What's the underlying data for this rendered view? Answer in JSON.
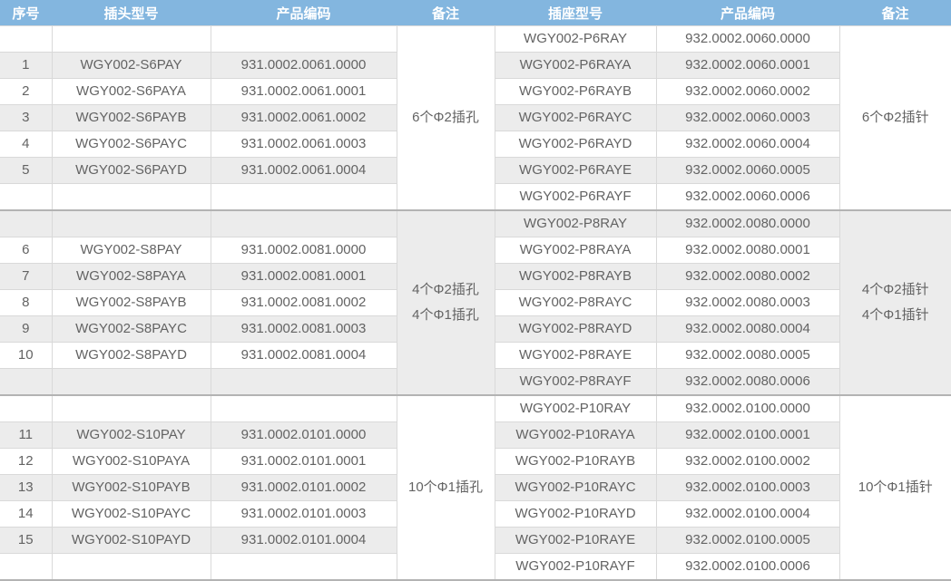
{
  "colors": {
    "header_bg": "#83B6DF",
    "header_text": "#FFFFFF",
    "stripe": "#ECECEC",
    "row_white": "#FFFFFF",
    "border": "#D9D9D9",
    "group_separator": "#B3B3B3",
    "cell_text": "#636363"
  },
  "table": {
    "headers": [
      "序号",
      "插头型号",
      "产品编码",
      "备注",
      "插座型号",
      "产品编码",
      "备注"
    ],
    "groups": [
      {
        "left_remark": "6个Φ2插孔",
        "right_remark": "6个Φ2插针",
        "left_rows": [
          [
            "",
            "",
            ""
          ],
          [
            "1",
            "WGY002-S6PAY",
            "931.0002.0061.0000"
          ],
          [
            "2",
            "WGY002-S6PAYA",
            "931.0002.0061.0001"
          ],
          [
            "3",
            "WGY002-S6PAYB",
            "931.0002.0061.0002"
          ],
          [
            "4",
            "WGY002-S6PAYC",
            "931.0002.0061.0003"
          ],
          [
            "5",
            "WGY002-S6PAYD",
            "931.0002.0061.0004"
          ],
          [
            "",
            "",
            ""
          ]
        ],
        "right_rows": [
          [
            "WGY002-P6RAY",
            "932.0002.0060.0000"
          ],
          [
            "WGY002-P6RAYA",
            "932.0002.0060.0001"
          ],
          [
            "WGY002-P6RAYB",
            "932.0002.0060.0002"
          ],
          [
            "WGY002-P6RAYC",
            "932.0002.0060.0003"
          ],
          [
            "WGY002-P6RAYD",
            "932.0002.0060.0004"
          ],
          [
            "WGY002-P6RAYE",
            "932.0002.0060.0005"
          ],
          [
            "WGY002-P6RAYF",
            "932.0002.0060.0006"
          ]
        ]
      },
      {
        "left_remark": "4个Φ2插孔\n4个Φ1插孔",
        "right_remark": "4个Φ2插针\n4个Φ1插针",
        "left_rows": [
          [
            "",
            "",
            ""
          ],
          [
            "6",
            "WGY002-S8PAY",
            "931.0002.0081.0000"
          ],
          [
            "7",
            "WGY002-S8PAYA",
            "931.0002.0081.0001"
          ],
          [
            "8",
            "WGY002-S8PAYB",
            "931.0002.0081.0002"
          ],
          [
            "9",
            "WGY002-S8PAYC",
            "931.0002.0081.0003"
          ],
          [
            "10",
            "WGY002-S8PAYD",
            "931.0002.0081.0004"
          ],
          [
            "",
            "",
            ""
          ]
        ],
        "right_rows": [
          [
            "WGY002-P8RAY",
            "932.0002.0080.0000"
          ],
          [
            "WGY002-P8RAYA",
            "932.0002.0080.0001"
          ],
          [
            "WGY002-P8RAYB",
            "932.0002.0080.0002"
          ],
          [
            "WGY002-P8RAYC",
            "932.0002.0080.0003"
          ],
          [
            "WGY002-P8RAYD",
            "932.0002.0080.0004"
          ],
          [
            "WGY002-P8RAYE",
            "932.0002.0080.0005"
          ],
          [
            "WGY002-P8RAYF",
            "932.0002.0080.0006"
          ]
        ]
      },
      {
        "left_remark": "10个Φ1插孔",
        "right_remark": "10个Φ1插针",
        "left_rows": [
          [
            "",
            "",
            ""
          ],
          [
            "11",
            "WGY002-S10PAY",
            "931.0002.0101.0000"
          ],
          [
            "12",
            "WGY002-S10PAYA",
            "931.0002.0101.0001"
          ],
          [
            "13",
            "WGY002-S10PAYB",
            "931.0002.0101.0002"
          ],
          [
            "14",
            "WGY002-S10PAYC",
            "931.0002.0101.0003"
          ],
          [
            "15",
            "WGY002-S10PAYD",
            "931.0002.0101.0004"
          ],
          [
            "",
            "",
            ""
          ]
        ],
        "right_rows": [
          [
            "WGY002-P10RAY",
            "932.0002.0100.0000"
          ],
          [
            "WGY002-P10RAYA",
            "932.0002.0100.0001"
          ],
          [
            "WGY002-P10RAYB",
            "932.0002.0100.0002"
          ],
          [
            "WGY002-P10RAYC",
            "932.0002.0100.0003"
          ],
          [
            "WGY002-P10RAYD",
            "932.0002.0100.0004"
          ],
          [
            "WGY002-P10RAYE",
            "932.0002.0100.0005"
          ],
          [
            "WGY002-P10RAYF",
            "932.0002.0100.0006"
          ]
        ]
      }
    ]
  }
}
